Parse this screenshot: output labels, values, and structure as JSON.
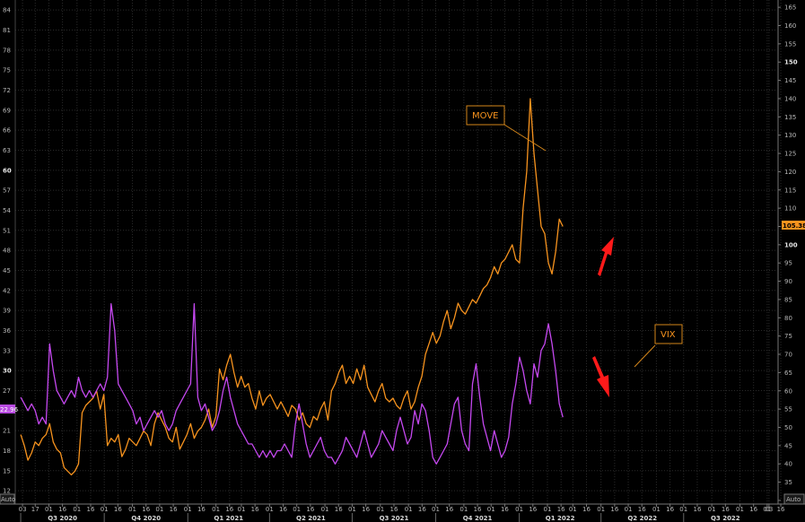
{
  "chart_data": {
    "type": "line",
    "x_period_labels": [
      "Q3 2020",
      "Q4 2020",
      "Q1 2021",
      "Q2 2021",
      "Q3 2021",
      "Q4 2021",
      "Q1 2022",
      "Q2 2022",
      "Q3 2022"
    ],
    "x_tick_labels": [
      "03",
      "17",
      "01",
      "16",
      "01",
      "16",
      "01",
      "16",
      "01",
      "16",
      "01",
      "16",
      "01",
      "16",
      "01",
      "16",
      "01",
      "16",
      "01",
      "16",
      "01",
      "16",
      "01",
      "16",
      "01",
      "16",
      "01",
      "16",
      "01",
      "16",
      "01",
      "16",
      "01",
      "16",
      "01",
      "16",
      "01",
      "16",
      "01",
      "16",
      "01",
      "16",
      "01",
      "16",
      "01",
      "16",
      "01",
      "16",
      "01",
      "16",
      "01",
      "16",
      "01",
      "16",
      "01",
      "16",
      "03"
    ],
    "left_axis": {
      "ticks": [
        12,
        15,
        18,
        21,
        24,
        27,
        30,
        33,
        36,
        39,
        42,
        45,
        48,
        51,
        54,
        57,
        60,
        63,
        66,
        69,
        72,
        75,
        78,
        81,
        84
      ],
      "ylim": [
        10,
        85.5
      ],
      "corner_label": "Auto",
      "last_value_label": "22.96"
    },
    "right_axis": {
      "ticks": [
        30,
        35,
        40,
        45,
        50,
        55,
        60,
        65,
        70,
        75,
        80,
        85,
        90,
        95,
        100,
        105,
        110,
        115,
        120,
        125,
        130,
        135,
        140,
        145,
        150,
        155,
        160,
        165
      ],
      "ylim": [
        29,
        167
      ],
      "corner_label": "Auto",
      "last_value_label": "105.38"
    },
    "grid": true,
    "legend": "none",
    "series": [
      {
        "name": "MOVE",
        "axis": "right",
        "color": "#f7931e",
        "start": "2020-07-01",
        "end": "2022-02-18",
        "points": [
          48,
          45,
          41,
          43,
          46,
          45,
          47,
          48,
          51,
          46,
          44,
          43,
          39,
          38,
          37,
          38,
          40,
          54,
          56,
          57,
          58,
          60,
          55,
          59,
          45,
          47,
          46,
          48,
          42,
          44,
          47,
          46,
          45,
          47,
          49,
          48,
          45,
          51,
          54,
          52,
          50,
          47,
          46,
          50,
          44,
          46,
          48,
          51,
          47,
          49,
          50,
          52,
          55,
          50,
          53,
          66,
          63,
          67,
          70,
          65,
          61,
          64,
          61,
          62,
          58,
          55,
          60,
          56,
          58,
          59,
          57,
          55,
          57,
          55,
          53,
          56,
          55,
          52,
          54,
          51,
          50,
          53,
          52,
          55,
          57,
          52,
          60,
          62,
          65,
          67,
          62,
          64,
          62,
          66,
          63,
          67,
          61,
          59,
          57,
          60,
          62,
          58,
          57,
          58,
          56,
          55,
          58,
          60,
          55,
          57,
          61,
          64,
          70,
          73,
          76,
          73,
          75,
          79,
          82,
          77,
          80,
          84,
          82,
          81,
          83,
          85,
          84,
          86,
          88,
          89,
          91,
          94,
          92,
          95,
          96,
          98,
          100,
          96,
          95,
          110,
          120,
          140,
          125,
          115,
          105,
          103,
          95,
          92,
          98,
          107,
          105
        ]
      },
      {
        "name": "VIX",
        "axis": "left",
        "color": "#c548f0",
        "start": "2020-07-01",
        "end": "2022-02-18",
        "points": [
          26,
          25,
          24,
          25,
          24,
          22,
          23,
          22,
          34,
          30,
          27,
          26,
          25,
          26,
          27,
          26,
          29,
          27,
          26,
          27,
          26,
          27,
          28,
          27,
          29,
          40,
          36,
          28,
          27,
          26,
          25,
          24,
          22,
          23,
          21,
          22,
          23,
          24,
          23,
          24,
          22,
          21,
          22,
          24,
          25,
          26,
          27,
          28,
          40,
          26,
          24,
          25,
          23,
          21,
          22,
          24,
          27,
          29,
          26,
          24,
          22,
          21,
          20,
          19,
          19,
          18,
          17,
          18,
          17,
          18,
          17,
          18,
          18,
          19,
          18,
          17,
          22,
          25,
          22,
          19,
          17,
          18,
          19,
          20,
          18,
          17,
          17,
          16,
          17,
          18,
          20,
          19,
          18,
          17,
          19,
          21,
          19,
          17,
          18,
          19,
          21,
          20,
          19,
          18,
          21,
          23,
          21,
          19,
          20,
          24,
          22,
          25,
          24,
          21,
          17,
          16,
          17,
          18,
          19,
          22,
          25,
          26,
          21,
          19,
          18,
          28,
          31,
          26,
          22,
          20,
          18,
          21,
          19,
          17,
          18,
          20,
          25,
          28,
          32,
          30,
          27,
          25,
          31,
          29,
          33,
          34,
          37,
          34,
          30,
          25,
          23
        ]
      }
    ],
    "annotations": [
      "MOVE",
      "VIX"
    ]
  }
}
